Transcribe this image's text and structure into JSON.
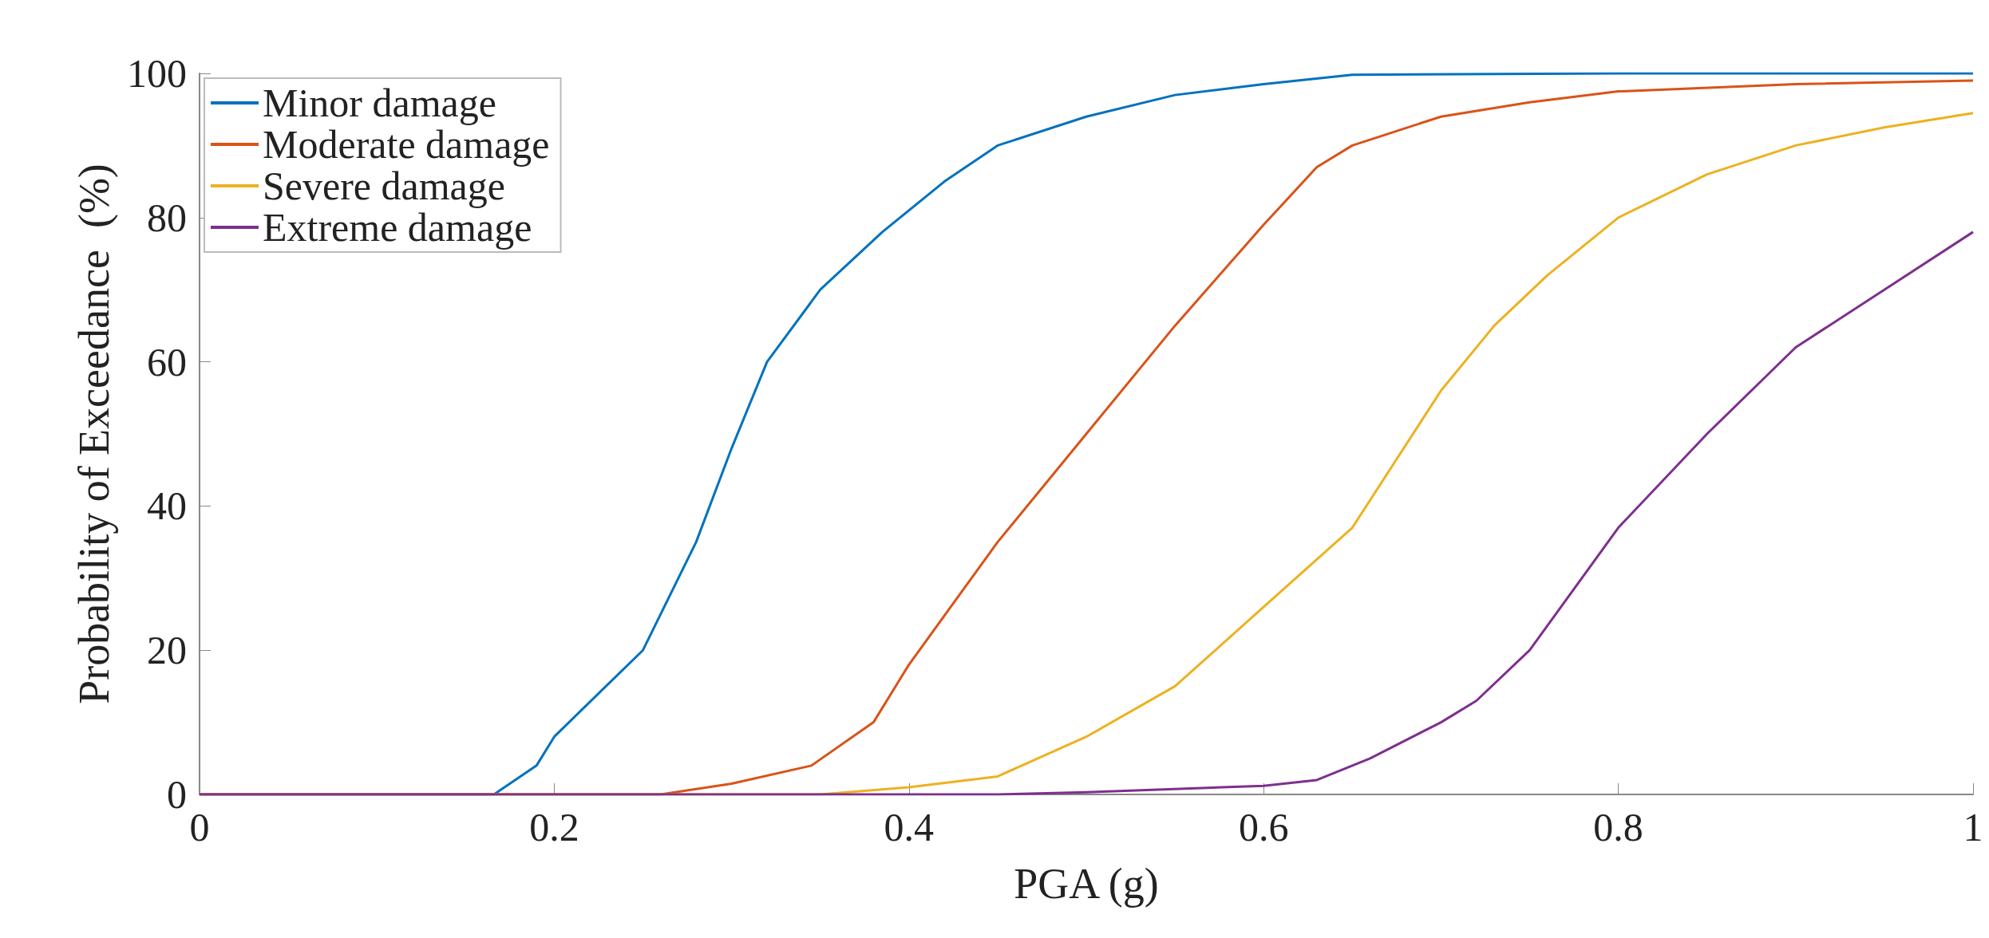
{
  "chart_data": {
    "type": "line",
    "xlabel": "PGA (g)",
    "ylabel": "Probability of Exceedance  (%)",
    "xlim": [
      0,
      1
    ],
    "xticks": [
      0,
      0.2,
      0.4,
      0.6,
      0.8,
      1
    ],
    "ylim": [
      0,
      100
    ],
    "yticks": [
      0,
      20,
      40,
      60,
      80,
      100
    ],
    "grid": false,
    "legend": "top left",
    "marker": "none",
    "line_style": "solid",
    "series": [
      {
        "name": "Minor damage",
        "color": "#0072bd",
        "x": [
          0,
          0.1,
          0.166,
          0.19,
          0.2,
          0.25,
          0.28,
          0.3,
          0.32,
          0.35,
          0.385,
          0.42,
          0.45,
          0.5,
          0.55,
          0.6,
          0.65,
          0.8,
          1
        ],
        "values": [
          0,
          0,
          0,
          4,
          8,
          20,
          35,
          48,
          60,
          70,
          78,
          85,
          90,
          94,
          97,
          98.5,
          99.8,
          100,
          100
        ]
      },
      {
        "name": "Moderate damage",
        "color": "#d95319",
        "x": [
          0,
          0.2,
          0.26,
          0.3,
          0.345,
          0.38,
          0.4,
          0.45,
          0.5,
          0.55,
          0.6,
          0.63,
          0.65,
          0.7,
          0.75,
          0.8,
          0.9,
          1
        ],
        "values": [
          0,
          0,
          0,
          1.5,
          4,
          10,
          18,
          35,
          50,
          65,
          79,
          87,
          90,
          94,
          96,
          97.5,
          98.5,
          99
        ]
      },
      {
        "name": "Severe damage",
        "color": "#edb120",
        "x": [
          0,
          0.3,
          0.35,
          0.4,
          0.45,
          0.5,
          0.55,
          0.6,
          0.65,
          0.7,
          0.73,
          0.76,
          0.8,
          0.85,
          0.9,
          0.95,
          1
        ],
        "values": [
          0,
          0,
          0,
          1,
          2.5,
          8,
          15,
          26,
          37,
          56,
          65,
          72,
          80,
          86,
          90,
          92.5,
          94.5
        ]
      },
      {
        "name": "Extreme damage",
        "color": "#7e2f8e",
        "x": [
          0,
          0.4,
          0.45,
          0.5,
          0.6,
          0.63,
          0.66,
          0.7,
          0.72,
          0.75,
          0.8,
          0.85,
          0.9,
          0.95,
          1
        ],
        "values": [
          0,
          0,
          0,
          0.3,
          1.2,
          2,
          5,
          10,
          13,
          20,
          37,
          50,
          62,
          70,
          78
        ]
      }
    ]
  }
}
